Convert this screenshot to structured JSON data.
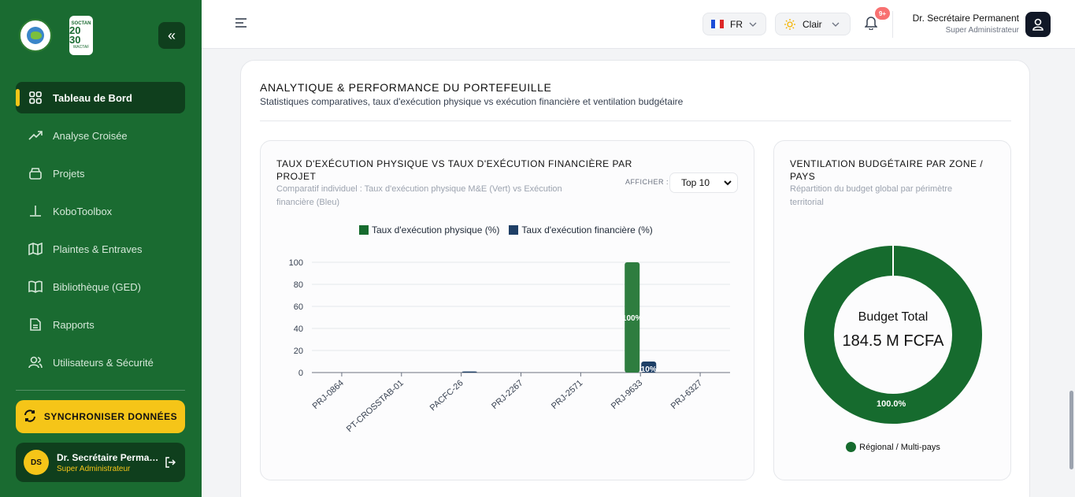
{
  "sidebar": {
    "collapse_label": "«",
    "logo_box": {
      "top": "SOCTAN",
      "mid": "20 30",
      "bot": "WACTAF"
    },
    "items": [
      {
        "label": "Tableau de Bord",
        "icon": "grid-icon",
        "active": true
      },
      {
        "label": "Analyse Croisée",
        "icon": "trend-icon"
      },
      {
        "label": "Projets",
        "icon": "box-icon"
      },
      {
        "label": "KoboToolbox",
        "icon": "tool-icon"
      },
      {
        "label": "Plaintes & Entraves",
        "icon": "map-icon"
      },
      {
        "label": "Bibliothèque (GED)",
        "icon": "book-icon"
      },
      {
        "label": "Rapports",
        "icon": "file-icon"
      },
      {
        "label": "Utilisateurs & Sécurité",
        "icon": "users-icon"
      }
    ],
    "sync_label": "SYNCHRONISER DONNÉES",
    "user": {
      "initials": "DS",
      "name": "Dr. Secrétaire Permanent",
      "role": "Super Administrateur"
    }
  },
  "topbar": {
    "lang": "FR",
    "theme": "Clair",
    "notif_badge": "9+",
    "user_name": "Dr. Secrétaire Permanent",
    "user_role": "Super Administrateur"
  },
  "panel": {
    "title": "ANALYTIQUE & PERFORMANCE DU PORTEFEUILLE",
    "subtitle": "Statistiques comparatives, taux d'exécution physique vs exécution financière et ventilation budgétaire"
  },
  "bar_card": {
    "title_line1": "TAUX D'EXÉCUTION PHYSIQUE VS TAUX D'EXÉCUTION FINANCIÈRE PAR",
    "title_line2": "PROJET",
    "sub_line1": "Comparatif individuel : Taux d'exécution physique M&E (Vert) vs Exécution",
    "sub_line2": "financière (Bleu)",
    "afficher_label": "AFFICHER :",
    "top_select": "Top 10"
  },
  "donut_card": {
    "title_line1": "VENTILATION BUDGÉTAIRE PAR ZONE /",
    "title_line2": "PAYS",
    "sub_line1": "Répartition du budget global par périmètre",
    "sub_line2": "territorial",
    "center_label": "Budget Total",
    "center_value": "184.5 M FCFA"
  },
  "colors": {
    "physique": "#2e7d3f",
    "financiere": "#1e3f66",
    "donut": "#166b2e",
    "accent": "#f5c518"
  },
  "chart_data": [
    {
      "type": "bar",
      "categories": [
        "PRJ-0864",
        "PT-CROSSTAB-01",
        "PACFC-26",
        "PRJ-2267",
        "PRJ-2571",
        "PRJ-9633",
        "PRJ-6327"
      ],
      "series": [
        {
          "name": "Taux d'exécution physique (%)",
          "values": [
            0,
            0,
            0,
            0,
            0,
            100,
            0
          ]
        },
        {
          "name": "Taux d'exécution financière (%)",
          "values": [
            0,
            0,
            1,
            0,
            0,
            10,
            0
          ]
        }
      ],
      "data_labels": [
        "100%",
        "10%"
      ],
      "yticks": [
        "100",
        "80",
        "60",
        "40",
        "20",
        "0"
      ],
      "ylim": [
        0,
        100
      ],
      "grid": true,
      "legend": "top"
    },
    {
      "type": "pie",
      "categories": [
        "Régional / Multi-pays"
      ],
      "values": [
        100.0
      ],
      "data_label": "100.0%",
      "legend": "bottom"
    }
  ]
}
